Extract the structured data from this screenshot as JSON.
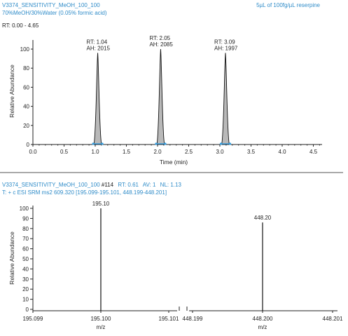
{
  "header": {
    "file": "V3374_SENSITIVITY_MeOH_100_100",
    "solvent": "70%MeOH/30%Water (0.05% formic acid)",
    "sample": "5µL of 100fg/µL reserpine",
    "rt_range": "RT: 0.00 - 4.65"
  },
  "spectrum_header": {
    "line1_file": "V3374_SENSITIVITY_MeOH_100_100",
    "line1_scan": "#114",
    "line1_rt": "RT: 0.61",
    "line1_av": "AV: 1",
    "line1_nl": "NL: 1.13",
    "line2": "T: + c ESI SRM ms2 609.320 [195.099-195.101, 448.199-448.201]"
  },
  "colors": {
    "header_text": "#2e8bc8",
    "peak_fill": "#b9b9b9",
    "peak_stroke": "#111111",
    "baseline_marker": "#3aa0e0"
  },
  "chart_data": [
    {
      "type": "line",
      "subtype": "chromatogram",
      "xlabel": "Time (min)",
      "ylabel": "Relative Abundance",
      "xlim": [
        0.0,
        4.65
      ],
      "ylim": [
        0,
        100
      ],
      "xticks": [
        "0.0",
        "0.5",
        "1.0",
        "1.5",
        "2.0",
        "2.5",
        "3.0",
        "3.5",
        "4.0",
        "4.5"
      ],
      "xtick_values": [
        0.0,
        0.5,
        1.0,
        1.5,
        2.0,
        2.5,
        3.0,
        3.5,
        4.0,
        4.5
      ],
      "yticks": [
        "0",
        "20",
        "40",
        "60",
        "80",
        "100"
      ],
      "ytick_values": [
        0,
        20,
        40,
        60,
        80,
        100
      ],
      "peaks": [
        {
          "rt": 1.04,
          "height": 96,
          "rt_label": "RT: 1.04",
          "ah_label": "AH: 2015"
        },
        {
          "rt": 2.05,
          "height": 100,
          "rt_label": "RT: 2.05",
          "ah_label": "AH: 2085"
        },
        {
          "rt": 3.09,
          "height": 96,
          "rt_label": "RT: 3.09",
          "ah_label": "AH: 1997"
        }
      ]
    },
    {
      "type": "bar",
      "subtype": "mass spectrum",
      "xlabel": "m/z",
      "ylabel": "Relative Abundance",
      "ylim": [
        0,
        100
      ],
      "yticks": [
        "0",
        "10",
        "20",
        "30",
        "40",
        "50",
        "60",
        "70",
        "80",
        "90",
        "100"
      ],
      "ytick_values": [
        0,
        10,
        20,
        30,
        40,
        50,
        60,
        70,
        80,
        90,
        100
      ],
      "segments": [
        {
          "xlim": [
            195.099,
            195.101
          ],
          "xticks": [
            "195.099",
            "195.100",
            "195.101"
          ],
          "xtick_values": [
            195.099,
            195.1,
            195.101
          ],
          "xlabel": "m/z"
        },
        {
          "xlim": [
            448.199,
            448.201
          ],
          "xticks": [
            "448.199",
            "448.200",
            "448.201"
          ],
          "xtick_values": [
            448.199,
            448.2,
            448.201
          ],
          "xlabel": "m/z"
        }
      ],
      "peaks": [
        {
          "segment": 0,
          "mz": 195.1,
          "value": 100,
          "label": "195.10"
        },
        {
          "segment": 1,
          "mz": 448.2,
          "value": 86,
          "label": "448.20"
        }
      ]
    }
  ]
}
